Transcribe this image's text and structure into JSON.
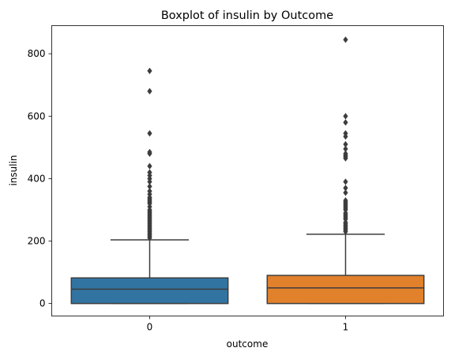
{
  "chart_data": {
    "type": "boxplot",
    "title": "Boxplot of insulin by Outcome",
    "xlabel": "outcome",
    "ylabel": "insulin",
    "ylim": [
      -40,
      890
    ],
    "yticks": [
      0,
      200,
      400,
      600,
      800
    ],
    "grid": false,
    "categories": [
      "0",
      "1"
    ],
    "boxes": [
      {
        "category": "0",
        "color": "#3274a1",
        "min": 0,
        "q1": 0,
        "median": 46,
        "q3": 82,
        "max": 204,
        "outliers": [
          210,
          215,
          220,
          225,
          230,
          235,
          240,
          245,
          250,
          255,
          260,
          265,
          270,
          275,
          280,
          285,
          290,
          295,
          300,
          310,
          320,
          325,
          330,
          335,
          340,
          350,
          360,
          375,
          390,
          400,
          410,
          420,
          440,
          480,
          485,
          545,
          680,
          745
        ]
      },
      {
        "category": "1",
        "color": "#e1812c",
        "min": 0,
        "q1": 0,
        "median": 50,
        "q3": 90,
        "max": 222,
        "outliers": [
          230,
          235,
          240,
          245,
          250,
          255,
          260,
          270,
          275,
          280,
          285,
          290,
          300,
          305,
          310,
          315,
          320,
          325,
          330,
          355,
          370,
          390,
          465,
          470,
          475,
          480,
          495,
          510,
          535,
          545,
          580,
          600,
          845
        ]
      }
    ]
  }
}
